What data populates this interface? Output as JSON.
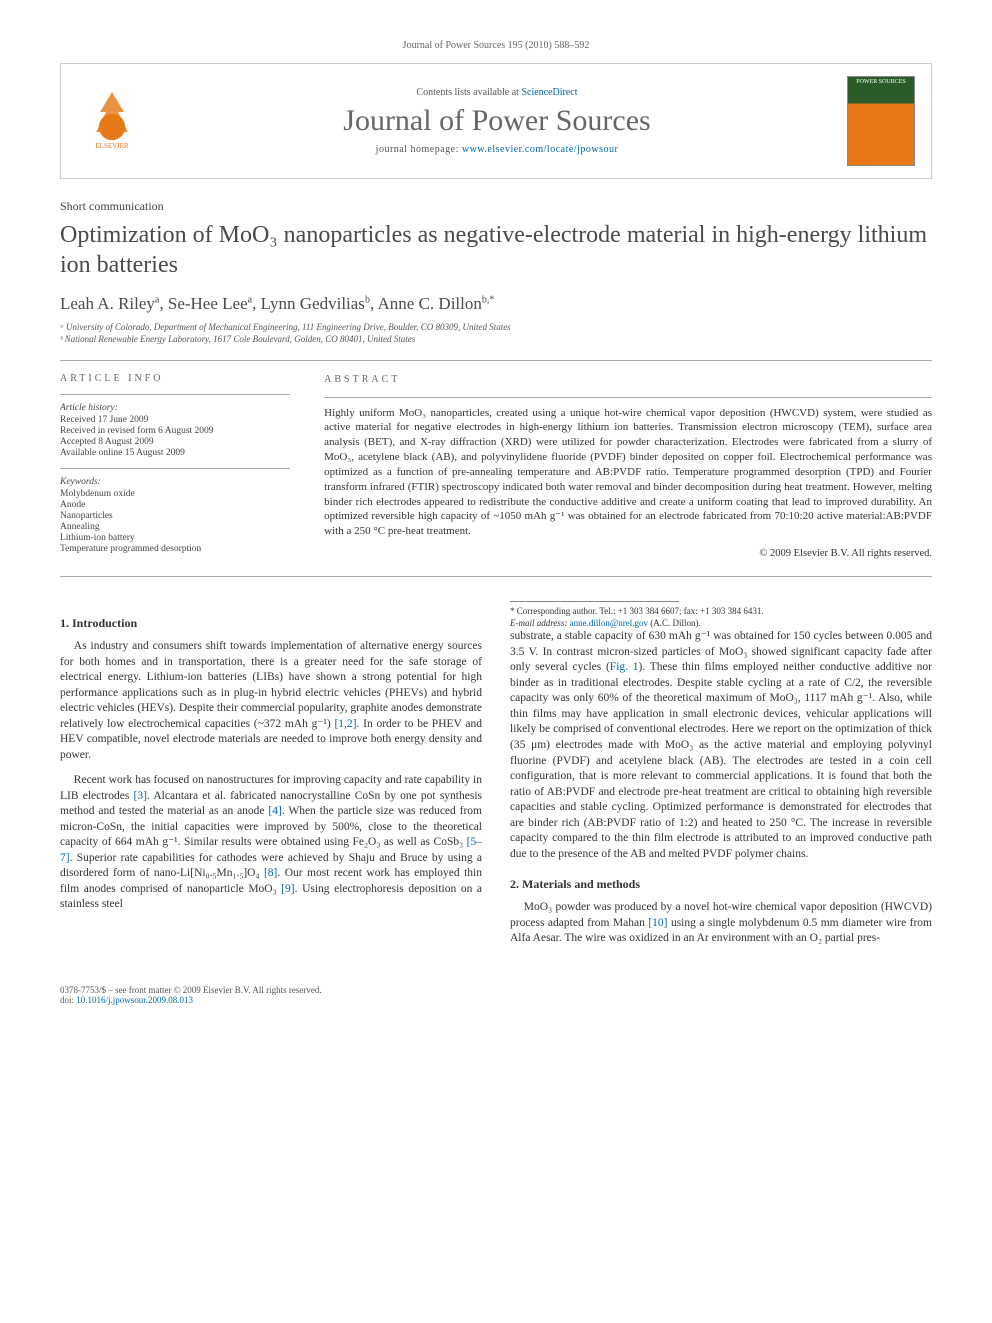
{
  "running_head": "Journal of Power Sources 195 (2010) 588–592",
  "header": {
    "contents_prefix": "Contents lists available at ",
    "contents_link": "ScienceDirect",
    "journal_name": "Journal of Power Sources",
    "homepage_prefix": "journal homepage: ",
    "homepage_url": "www.elsevier.com/locate/jpowsour",
    "elsevier_label": "ELSEVIER",
    "cover_text": "POWER SOURCES"
  },
  "article_type": "Short communication",
  "title": "Optimization of MoO₃ nanoparticles as negative-electrode material in high-energy lithium ion batteries",
  "authors_html": "Leah A. Riley<sup>a</sup>, Se-Hee Lee<sup>a</sup>, Lynn Gedvilias<sup>b</sup>, Anne C. Dillon<sup>b,*</sup>",
  "affiliations": [
    "ᵃ University of Colorado, Department of Mechanical Engineering, 111 Engineering Drive, Boulder, CO 80309, United States",
    "ᵇ National Renewable Energy Laboratory, 1617 Cole Boulevard, Golden, CO 80401, United States"
  ],
  "info": {
    "label": "ARTICLE INFO",
    "history_hdr": "Article history:",
    "history": [
      "Received 17 June 2009",
      "Received in revised form 6 August 2009",
      "Accepted 8 August 2009",
      "Available online 15 August 2009"
    ],
    "keywords_hdr": "Keywords:",
    "keywords": [
      "Molybdenum oxide",
      "Anode",
      "Nanoparticles",
      "Annealing",
      "Lithium-ion battery",
      "Temperature programmed desorption"
    ]
  },
  "abstract": {
    "label": "ABSTRACT",
    "text": "Highly uniform MoO₃ nanoparticles, created using a unique hot-wire chemical vapor deposition (HWCVD) system, were studied as active material for negative electrodes in high-energy lithium ion batteries. Transmission electron microscopy (TEM), surface area analysis (BET), and X-ray diffraction (XRD) were utilized for powder characterization. Electrodes were fabricated from a slurry of MoO₃, acetylene black (AB), and polyvinylidene fluoride (PVDF) binder deposited on copper foil. Electrochemical performance was optimized as a function of pre-annealing temperature and AB:PVDF ratio. Temperature programmed desorption (TPD) and Fourier transform infrared (FTIR) spectroscopy indicated both water removal and binder decomposition during heat treatment. However, melting binder rich electrodes appeared to redistribute the conductive additive and create a uniform coating that lead to improved durability. An optimized reversible high capacity of ~1050 mAh g⁻¹ was obtained for an electrode fabricated from 70:10:20 active material:AB:PVDF with a 250 °C pre-heat treatment.",
    "copyright": "© 2009 Elsevier B.V. All rights reserved."
  },
  "sections": {
    "intro_hdr": "1. Introduction",
    "intro_p1": "As industry and consumers shift towards implementation of alternative energy sources for both homes and in transportation, there is a greater need for the safe storage of electrical energy. Lithium-ion batteries (LIBs) have shown a strong potential for high performance applications such as in plug-in hybrid electric vehicles (PHEVs) and hybrid electric vehicles (HEVs). Despite their commercial popularity, graphite anodes demonstrate relatively low electrochemical capacities (~372 mAh g⁻¹) [1,2]. In order to be PHEV and HEV compatible, novel electrode materials are needed to improve both energy density and power.",
    "intro_p2": "Recent work has focused on nanostructures for improving capacity and rate capability in LIB electrodes [3]. Alcantara et al. fabricated nanocrystalline CoSn by one pot synthesis method and tested the material as an anode [4]. When the particle size was reduced from micron-CoSn, the initial capacities were improved by 500%, close to the theoretical capacity of 664 mAh g⁻¹. Similar results were obtained using Fe₂O₃ as well as CoSb₃ [5–7]. Superior rate capabilities for cathodes were achieved by Shaju and Bruce by using a disordered form of nano-Li[Ni₀.₅Mn₁.₅]O₄ [8]. Our most recent work has employed thin film anodes comprised of nanoparticle MoO₃ [9]. Using electrophoresis deposition on a stainless steel",
    "intro_p3": "substrate, a stable capacity of 630 mAh g⁻¹ was obtained for 150 cycles between 0.005 and 3.5 V. In contrast micron-sized particles of MoO₃ showed significant capacity fade after only several cycles (Fig. 1). These thin films employed neither conductive additive nor binder as in traditional electrodes. Despite stable cycling at a rate of C/2, the reversible capacity was only 60% of the theoretical maximum of MoO₃, 1117 mAh g⁻¹. Also, while thin films may have application in small electronic devices, vehicular applications will likely be comprised of conventional electrodes. Here we report on the optimization of thick (35 μm) electrodes made with MoO₃ as the active material and employing polyvinyl fluorine (PVDF) and acetylene black (AB). The electrodes are tested in a coin cell configuration, that is more relevant to commercial applications. It is found that both the ratio of AB:PVDF and electrode pre-heat treatment are critical to obtaining high reversible capacities and stable cycling. Optimized performance is demonstrated for electrodes that are binder rich (AB:PVDF ratio of 1:2) and heated to 250 °C. The increase in reversible capacity compared to the thin film electrode is attributed to an improved conductive path due to the presence of the AB and melted PVDF polymer chains.",
    "methods_hdr": "2. Materials and methods",
    "methods_p1": "MoO₃ powder was produced by a novel hot-wire chemical vapor deposition (HWCVD) process adapted from Mahan [10] using a single molybdenum 0.5 mm diameter wire from Alfa Aesar. The wire was oxidized in an Ar environment with an O₂ partial pres-"
  },
  "footnote": {
    "corr": "* Corresponding author. Tel.: +1 303 384 6607; fax: +1 303 384 6431.",
    "email_label": "E-mail address: ",
    "email": "anne.dillon@nrel.gov",
    "email_suffix": " (A.C. Dillon)."
  },
  "footer": {
    "line1": "0378-7753/$ – see front matter © 2009 Elsevier B.V. All rights reserved.",
    "doi_prefix": "doi:",
    "doi": "10.1016/j.jpowsour.2009.08.013"
  }
}
